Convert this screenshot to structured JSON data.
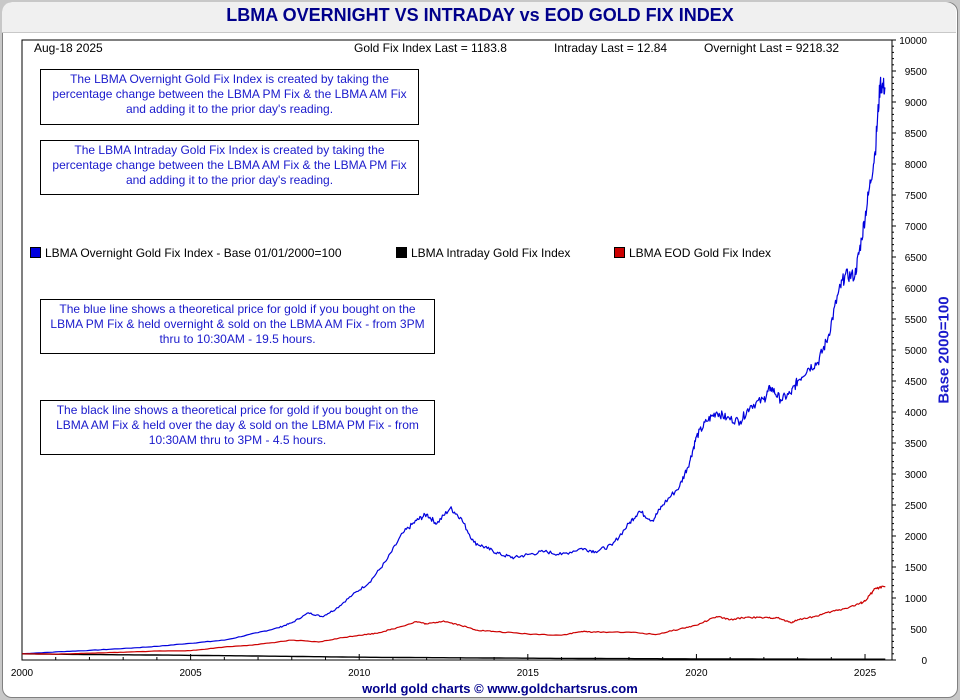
{
  "chart_data": {
    "type": "line",
    "title": "LBMA OVERNIGHT VS INTRADAY vs EOD GOLD FIX INDEX",
    "date_label": "Aug-18  2025",
    "header_values": {
      "gold_fix": "Gold Fix Index Last = 1183.8",
      "intraday": "Intraday Last = 12.84",
      "overnight": "Overnight Last = 9218.32"
    },
    "ylabel": "Base 2000=100",
    "footer": "world gold charts © www.goldchartsrus.com",
    "xlim": [
      2000,
      2025.8
    ],
    "ylim": [
      0,
      10000
    ],
    "x_ticks": [
      "2000",
      "2005",
      "2010",
      "2015",
      "2020",
      "2025"
    ],
    "y_ticks": [
      "0",
      "500",
      "1000",
      "1500",
      "2000",
      "2500",
      "3000",
      "3500",
      "4000",
      "4500",
      "5000",
      "5500",
      "6000",
      "6500",
      "7000",
      "7500",
      "8000",
      "8500",
      "9000",
      "9500",
      "10000"
    ],
    "notes": [
      "The LBMA Overnight Gold Fix Index is created by taking the percentage change between the LBMA PM Fix & the LBMA AM Fix and adding it to the prior day's reading.",
      "The LBMA Intraday Gold Fix Index is created by taking the percentage change between the LBMA AM Fix & the LBMA PM Fix and adding it to the prior day's reading.",
      "The blue line shows a theoretical price for gold if you bought on the LBMA PM Fix & held overnight & sold on the LBMA AM Fix - from 3PM thru to 10:30AM - 19.5 hours.",
      "The black line shows a theoretical price for gold if you bought on the LBMA AM Fix & held over the day & sold on the LBMA PM Fix - from 10:30AM thru to 3PM - 4.5 hours."
    ],
    "series": [
      {
        "name": "LBMA Overnight Gold Fix Index - Base 01/01/2000=100",
        "color": "#0000dd",
        "x": [
          2000,
          2001,
          2002,
          2003,
          2004,
          2005,
          2006,
          2007,
          2007.6,
          2008,
          2008.5,
          2008.9,
          2009.3,
          2009.8,
          2010.3,
          2010.8,
          2011.3,
          2011.7,
          2012,
          2012.3,
          2012.7,
          2013,
          2013.4,
          2013.8,
          2014.2,
          2014.6,
          2015,
          2015.5,
          2016,
          2016.6,
          2017,
          2017.5,
          2018,
          2018.3,
          2018.7,
          2019,
          2019.5,
          2019.8,
          2020,
          2020.3,
          2020.6,
          2020.9,
          2021.3,
          2021.6,
          2022,
          2022.2,
          2022.5,
          2022.8,
          2023,
          2023.3,
          2023.6,
          2023.9,
          2024.2,
          2024.4,
          2024.7,
          2024.9,
          2025.1,
          2025.3,
          2025.45,
          2025.6
        ],
        "values": [
          100,
          130,
          155,
          185,
          220,
          270,
          320,
          440,
          520,
          600,
          760,
          700,
          820,
          1050,
          1250,
          1600,
          2050,
          2250,
          2350,
          2200,
          2450,
          2300,
          1900,
          1800,
          1700,
          1650,
          1700,
          1750,
          1700,
          1800,
          1750,
          1850,
          2200,
          2400,
          2250,
          2500,
          2800,
          3200,
          3600,
          3850,
          4000,
          3900,
          3850,
          4100,
          4200,
          4400,
          4200,
          4300,
          4500,
          4700,
          4800,
          5200,
          5900,
          6200,
          6200,
          6800,
          7500,
          8200,
          9300,
          9218
        ]
      },
      {
        "name": "LBMA Intraday Gold Fix Index",
        "color": "#000000",
        "x": [
          2000,
          2002,
          2004,
          2006,
          2008,
          2010,
          2012,
          2014,
          2016,
          2018,
          2020,
          2022,
          2024,
          2025.6
        ],
        "values": [
          100,
          88,
          80,
          70,
          58,
          45,
          38,
          32,
          26,
          22,
          18,
          15,
          13,
          12.84
        ]
      },
      {
        "name": "LBMA EOD Gold Fix Index",
        "color": "#cc0000",
        "x": [
          2000,
          2001,
          2002,
          2003,
          2004,
          2005,
          2006,
          2007,
          2008,
          2008.8,
          2009.5,
          2010,
          2010.5,
          2011,
          2011.7,
          2012,
          2012.5,
          2013,
          2013.5,
          2014,
          2015,
          2016,
          2016.6,
          2017,
          2018,
          2018.8,
          2019.5,
          2020,
          2020.6,
          2021,
          2021.5,
          2022,
          2022.4,
          2022.8,
          2023,
          2023.5,
          2024,
          2024.4,
          2024.8,
          2025,
          2025.3,
          2025.6
        ],
        "values": [
          100,
          95,
          110,
          125,
          145,
          150,
          210,
          250,
          320,
          290,
          360,
          400,
          430,
          500,
          620,
          580,
          630,
          560,
          480,
          460,
          420,
          400,
          460,
          450,
          450,
          410,
          500,
          560,
          700,
          650,
          690,
          680,
          680,
          600,
          650,
          700,
          780,
          830,
          900,
          950,
          1150,
          1184
        ]
      }
    ]
  }
}
